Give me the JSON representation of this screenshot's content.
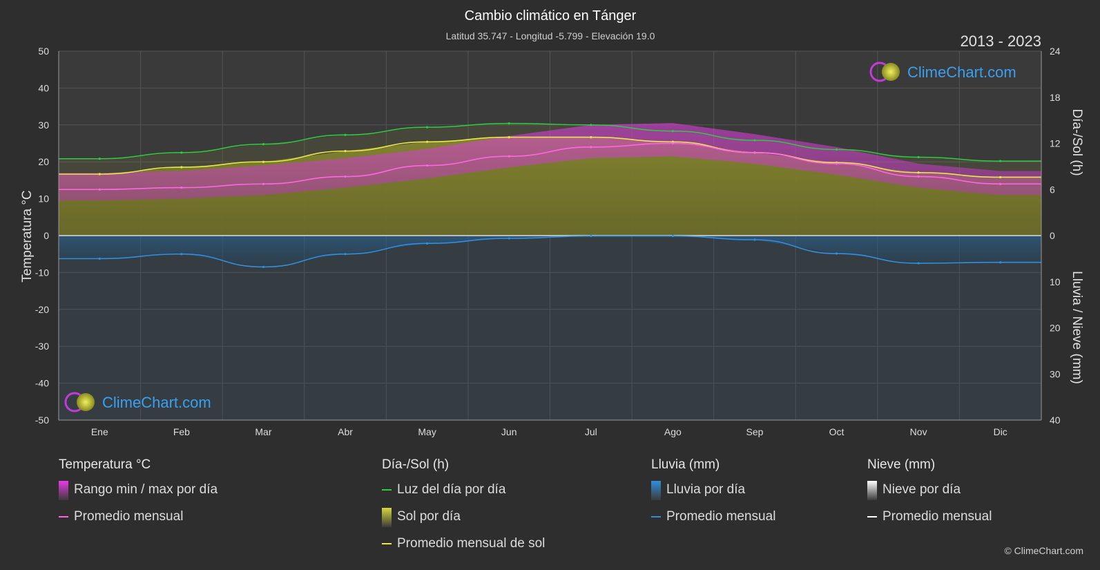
{
  "chart_data": {
    "type": "area",
    "title": "Cambio climático en Tánger",
    "subtitle": "Latitud 35.747 - Longitud -5.799 - Elevación 19.0",
    "period": "2013 - 2023",
    "brand": "ClimeChart.com",
    "copyright": "© ClimeChart.com",
    "categories": [
      "Ene",
      "Feb",
      "Mar",
      "Abr",
      "May",
      "Jun",
      "Jul",
      "Ago",
      "Sep",
      "Oct",
      "Nov",
      "Dic"
    ],
    "axes": {
      "left": {
        "label": "Temperatura °C",
        "range": [
          -50,
          50
        ],
        "ticks": [
          50,
          40,
          30,
          20,
          10,
          0,
          -10,
          -20,
          -30,
          -40,
          -50
        ]
      },
      "right_top": {
        "label": "Día-/Sol (h)",
        "range": [
          0,
          24
        ],
        "ticks": [
          24,
          18,
          12,
          6,
          0
        ]
      },
      "right_bottom": {
        "label": "Lluvia / Nieve (mm)",
        "range": [
          0,
          40
        ],
        "ticks": [
          10,
          20,
          30,
          40
        ]
      }
    },
    "series": [
      {
        "name": "Luz del día por día",
        "unit": "h",
        "color": "#2ecc40",
        "values": [
          10.0,
          10.8,
          11.9,
          13.1,
          14.1,
          14.6,
          14.4,
          13.6,
          12.4,
          11.2,
          10.2,
          9.7
        ]
      },
      {
        "name": "Promedio mensual de sol",
        "unit": "h",
        "color": "#e8e84a",
        "values": [
          8.0,
          8.9,
          9.6,
          11.0,
          12.2,
          12.8,
          12.8,
          12.2,
          10.8,
          9.5,
          8.2,
          7.6
        ]
      },
      {
        "name": "Promedio mensual",
        "unit": "°C",
        "color": "#ff66e0",
        "values": [
          12.5,
          13.0,
          14.0,
          16.0,
          19.0,
          21.5,
          24.0,
          25.0,
          22.5,
          19.5,
          16.0,
          14.0
        ]
      },
      {
        "name": "Rango min / max por día",
        "unit": "°C",
        "color": "#cc33cc",
        "min": [
          9.5,
          10.0,
          11.0,
          13.0,
          15.5,
          18.5,
          21.0,
          21.5,
          19.5,
          16.5,
          13.0,
          11.0
        ],
        "max": [
          17.0,
          17.5,
          19.0,
          21.0,
          23.5,
          27.0,
          30.0,
          30.5,
          27.5,
          24.0,
          19.5,
          17.5
        ]
      },
      {
        "name": "Promedio mensual",
        "unit": "mm",
        "color": "#2f8fdf",
        "values": [
          5.0,
          4.0,
          6.8,
          4.0,
          1.7,
          0.6,
          0.1,
          0.1,
          0.9,
          3.9,
          6.0,
          5.8
        ]
      }
    ]
  },
  "legend": {
    "groups": [
      {
        "title": "Temperatura °C",
        "items": [
          {
            "label": "Rango min / max por día",
            "kind": "grad",
            "color": "#e83ae8"
          },
          {
            "label": "Promedio mensual",
            "kind": "line",
            "color": "#ff66e0"
          }
        ]
      },
      {
        "title": "Día-/Sol (h)",
        "items": [
          {
            "label": "Luz del día por día",
            "kind": "line",
            "color": "#2ecc40"
          },
          {
            "label": "Sol por día",
            "kind": "grad",
            "color": "#d8d83a"
          },
          {
            "label": "Promedio mensual de sol",
            "kind": "line",
            "color": "#e8e84a"
          }
        ]
      },
      {
        "title": "Lluvia (mm)",
        "items": [
          {
            "label": "Lluvia por día",
            "kind": "grad",
            "color": "#2f8fdf"
          },
          {
            "label": "Promedio mensual",
            "kind": "line",
            "color": "#2f8fdf"
          }
        ]
      },
      {
        "title": "Nieve (mm)",
        "items": [
          {
            "label": "Nieve por día",
            "kind": "grad",
            "color": "#ffffff"
          },
          {
            "label": "Promedio mensual",
            "kind": "line",
            "color": "#ffffff"
          }
        ]
      }
    ]
  }
}
